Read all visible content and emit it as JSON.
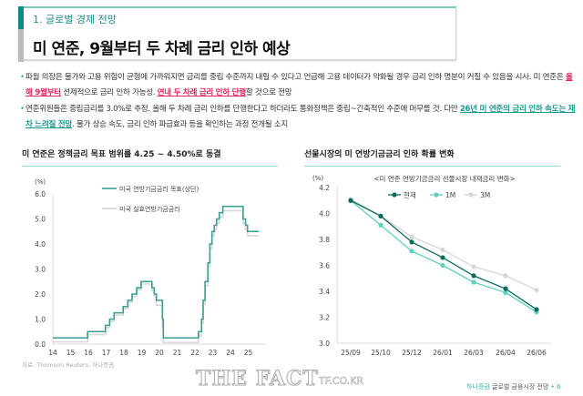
{
  "header": {
    "section": "1. 글로벌 경제 전망",
    "title": "미 연준, 9월부터 두 차례 금리 인하 예상"
  },
  "bullets": [
    {
      "parts": [
        "파월 의장은 물가와 고용 위험이 균형에 가까워지면 금리를 중립 수준까지 내릴 수 있다고 언급해 고용 데이터가 악화될 경우 금리 인하 명분이 커질 수 있음을 시사. 미 연준은 ",
        "올해 9월부터",
        " 선제적으로 금리 인하 가능성. ",
        "연내 두 차례 금리 인하 단행",
        "할 것으로 전망"
      ]
    },
    {
      "parts": [
        "연준위원들은 중립금리를 3.0%로 추정. 올해 두 차례 금리 인하를 단행한다고 하더라도 통화정책은 중립~긴축적인 수준에 머무를 것. 다만 ",
        "26년 미 연준의 금리 인하 속도는 재차 느려질 전망",
        ". 물가 상승 속도, 금리 인하 파급효과 등을 확인하는 과정 전개될 소지"
      ]
    }
  ],
  "source_left": "자료: Thomson Reuters, 하나증권",
  "footer": {
    "brand": "하나증권",
    "doc": "글로벌 금융시장 전망",
    "page": "6"
  },
  "watermark": {
    "main": "THE FACT",
    "url": "TF.CO.KR"
  },
  "chart_data": [
    {
      "type": "line",
      "title": "미 연준은 정책금리 목표 범위를 4.25 ~ 4.50%로 동결",
      "ylabel": "(%)",
      "ylim": [
        0,
        6
      ],
      "yticks": [
        "0.0",
        "1.0",
        "2.0",
        "3.0",
        "4.0",
        "5.0",
        "6.0"
      ],
      "xticks": [
        "14",
        "15",
        "16",
        "17",
        "18",
        "19",
        "20",
        "21",
        "22",
        "23",
        "24",
        "25"
      ],
      "legend_placement": "top-left",
      "series": [
        {
          "name": "미국 연방기금금리 목표(상단)",
          "color": "#3a9e94",
          "step": true,
          "points": [
            [
              2014,
              0.25
            ],
            [
              2015.96,
              0.5
            ],
            [
              2016.96,
              0.75
            ],
            [
              2017.2,
              1.0
            ],
            [
              2017.45,
              1.25
            ],
            [
              2017.96,
              1.5
            ],
            [
              2018.22,
              1.75
            ],
            [
              2018.46,
              2.0
            ],
            [
              2018.72,
              2.25
            ],
            [
              2018.97,
              2.5
            ],
            [
              2019.58,
              2.25
            ],
            [
              2019.71,
              2.0
            ],
            [
              2019.83,
              1.75
            ],
            [
              2020.17,
              1.0
            ],
            [
              2020.22,
              0.25
            ],
            [
              2022.2,
              0.5
            ],
            [
              2022.37,
              1.0
            ],
            [
              2022.46,
              1.75
            ],
            [
              2022.57,
              2.5
            ],
            [
              2022.73,
              3.25
            ],
            [
              2022.84,
              4.0
            ],
            [
              2022.96,
              4.5
            ],
            [
              2023.09,
              4.75
            ],
            [
              2023.22,
              5.0
            ],
            [
              2023.37,
              5.25
            ],
            [
              2023.57,
              5.5
            ],
            [
              2024.71,
              5.0
            ],
            [
              2024.85,
              4.75
            ],
            [
              2024.96,
              4.5
            ],
            [
              2025.6,
              4.5
            ]
          ]
        },
        {
          "name": "미국 실효연방기금금리",
          "color": "#d8d8d8",
          "step": true,
          "points": [
            [
              2014,
              0.09
            ],
            [
              2015.96,
              0.38
            ],
            [
              2016.96,
              0.66
            ],
            [
              2017.2,
              0.91
            ],
            [
              2017.45,
              1.16
            ],
            [
              2017.96,
              1.42
            ],
            [
              2018.22,
              1.68
            ],
            [
              2018.46,
              1.91
            ],
            [
              2018.72,
              2.18
            ],
            [
              2018.97,
              2.4
            ],
            [
              2019.58,
              2.13
            ],
            [
              2019.71,
              1.9
            ],
            [
              2019.83,
              1.55
            ],
            [
              2020.17,
              0.65
            ],
            [
              2020.22,
              0.06
            ],
            [
              2022.2,
              0.33
            ],
            [
              2022.37,
              0.83
            ],
            [
              2022.46,
              1.58
            ],
            [
              2022.57,
              2.33
            ],
            [
              2022.73,
              3.08
            ],
            [
              2022.84,
              3.83
            ],
            [
              2022.96,
              4.33
            ],
            [
              2023.09,
              4.58
            ],
            [
              2023.22,
              4.83
            ],
            [
              2023.37,
              5.08
            ],
            [
              2023.57,
              5.33
            ],
            [
              2024.71,
              4.83
            ],
            [
              2024.85,
              4.58
            ],
            [
              2024.96,
              4.33
            ],
            [
              2025.6,
              4.33
            ]
          ]
        }
      ]
    },
    {
      "type": "line",
      "title": "선물시장의 미 연방기금금리 인하 확률 변화",
      "subtitle": "<미 연준 연방기금금리 선물시장 내재금리 변화>",
      "ylabel": "(%)",
      "ylim": [
        3.0,
        4.2
      ],
      "yticks": [
        "3.0",
        "3.2",
        "3.4",
        "3.6",
        "3.8",
        "4.0",
        "4.2"
      ],
      "categories": [
        "25/09",
        "25/10",
        "25/12",
        "26/01",
        "26/03",
        "26/04",
        "26/06"
      ],
      "legend_placement": "top",
      "series": [
        {
          "name": "3M",
          "color": "#d6d6d6",
          "values": [
            4.11,
            3.98,
            3.82,
            3.72,
            3.59,
            3.52,
            3.41
          ]
        },
        {
          "name": "1M",
          "color": "#5fcfbf",
          "values": [
            4.1,
            3.91,
            3.71,
            3.6,
            3.47,
            3.39,
            3.24
          ]
        },
        {
          "name": "현재",
          "color": "#0d6b5e",
          "values": [
            4.1,
            3.98,
            3.78,
            3.66,
            3.52,
            3.42,
            3.26
          ]
        }
      ]
    }
  ]
}
